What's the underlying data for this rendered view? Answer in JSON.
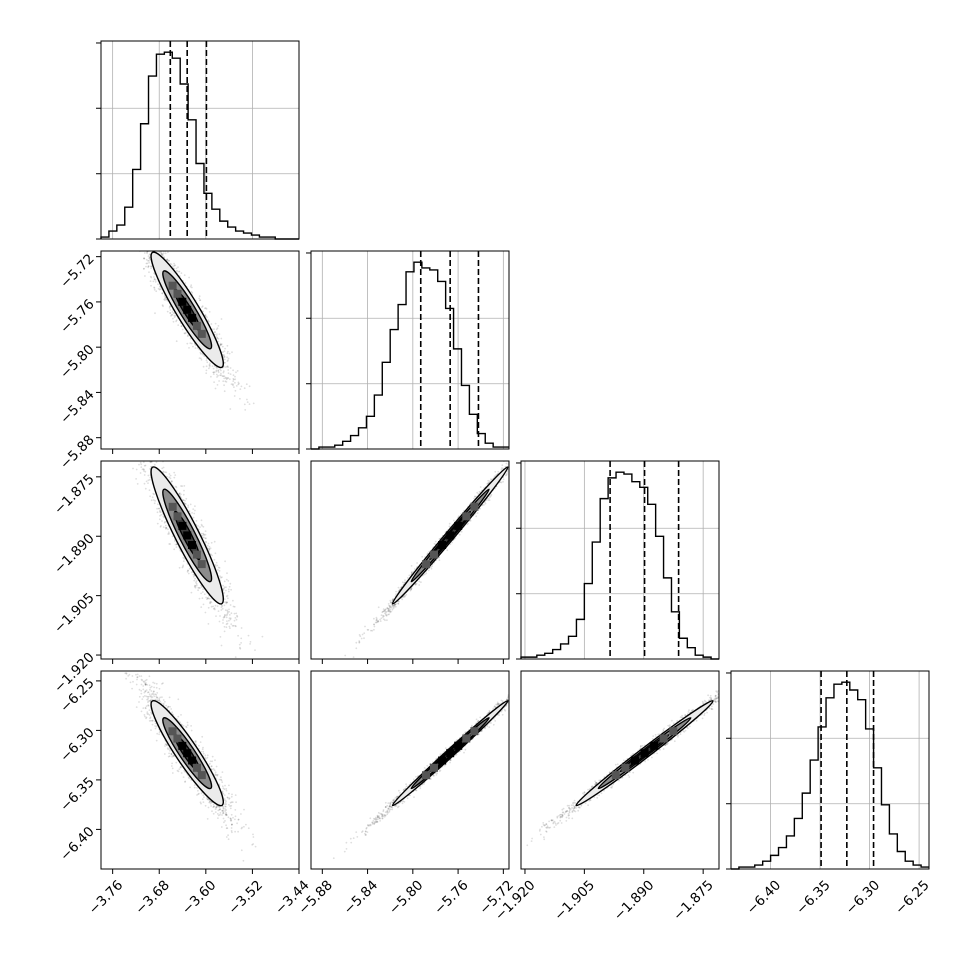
{
  "chart_data": {
    "type": "corner",
    "title": "",
    "parameters": [
      {
        "index": 0,
        "range": [
          -3.78,
          -3.44
        ],
        "ticks": [
          -3.76,
          -3.68,
          -3.6,
          -3.52,
          -3.44
        ],
        "tick_labels": [
          "−3.76",
          "−3.68",
          "−3.60",
          "−3.52",
          "−3.44"
        ],
        "quantiles": [
          -3.661,
          -3.632,
          -3.599
        ],
        "hist_edges_start": -3.78,
        "hist_bin_width": 0.0136,
        "hist_counts": [
          1,
          4,
          7,
          16,
          35,
          58,
          82,
          93,
          94,
          91,
          78,
          60,
          38,
          23,
          15,
          9,
          6,
          4,
          3,
          2,
          1,
          1,
          0,
          0,
          0
        ]
      },
      {
        "index": 1,
        "range": [
          -5.89,
          -5.715
        ],
        "ticks": [
          -5.88,
          -5.84,
          -5.8,
          -5.76,
          -5.72
        ],
        "tick_labels": [
          "−5.88",
          "−5.84",
          "−5.80",
          "−5.76",
          "−5.72"
        ],
        "quantiles": [
          -5.793,
          -5.767,
          -5.742
        ],
        "hist_edges_start": -5.89,
        "hist_bin_width": 0.007,
        "hist_counts": [
          0,
          1,
          1,
          2,
          4,
          7,
          11,
          17,
          28,
          45,
          62,
          75,
          92,
          97,
          94,
          93,
          87,
          73,
          52,
          33,
          18,
          8,
          3,
          1,
          1
        ]
      },
      {
        "index": 2,
        "range": [
          -1.921,
          -1.871
        ],
        "ticks": [
          -1.92,
          -1.905,
          -1.89,
          -1.875
        ],
        "tick_labels": [
          "−1.920",
          "−1.905",
          "−1.890",
          "−1.875"
        ],
        "quantiles": [
          -1.8985,
          -1.8898,
          -1.8812
        ],
        "hist_edges_start": -1.921,
        "hist_bin_width": 0.002,
        "hist_counts": [
          1,
          1,
          2,
          3,
          5,
          8,
          12,
          21,
          40,
          62,
          85,
          96,
          99,
          98,
          94,
          91,
          82,
          65,
          43,
          25,
          11,
          6,
          2,
          1,
          0
        ]
      },
      {
        "index": 3,
        "range": [
          -6.44,
          -6.24
        ],
        "ticks": [
          -6.4,
          -6.35,
          -6.3,
          -6.25
        ],
        "tick_labels": [
          "−6.40",
          "−6.35",
          "−6.30",
          "−6.25"
        ],
        "quantiles": [
          -6.349,
          -6.323,
          -6.296
        ],
        "hist_edges_start": -6.44,
        "hist_bin_width": 0.008,
        "hist_counts": [
          0,
          1,
          1,
          2,
          4,
          7,
          11,
          17,
          26,
          39,
          56,
          73,
          88,
          95,
          96,
          92,
          87,
          72,
          52,
          33,
          18,
          9,
          4,
          2,
          1
        ]
      }
    ],
    "pairs": [
      {
        "x": 0,
        "y": 1,
        "mean": [
          -3.632,
          -5.767
        ],
        "correlation": -0.93
      },
      {
        "x": 0,
        "y": 2,
        "mean": [
          -3.632,
          -1.8898
        ],
        "correlation": -0.93
      },
      {
        "x": 0,
        "y": 3,
        "mean": [
          -3.632,
          -6.323
        ],
        "correlation": -0.93
      },
      {
        "x": 1,
        "y": 2,
        "mean": [
          -5.767,
          -1.8898
        ],
        "correlation": 0.995
      },
      {
        "x": 1,
        "y": 3,
        "mean": [
          -5.767,
          -6.323
        ],
        "correlation": 0.995
      },
      {
        "x": 2,
        "y": 3,
        "mean": [
          -1.8898,
          -6.323
        ],
        "correlation": 0.993
      }
    ],
    "grid": true,
    "colors": {
      "line": "#000000",
      "points": "#000000",
      "contour_fill_dark": "#4a4a4a",
      "contour_fill_light": "#e0e0e0",
      "grid": "#b0b0b0"
    }
  }
}
